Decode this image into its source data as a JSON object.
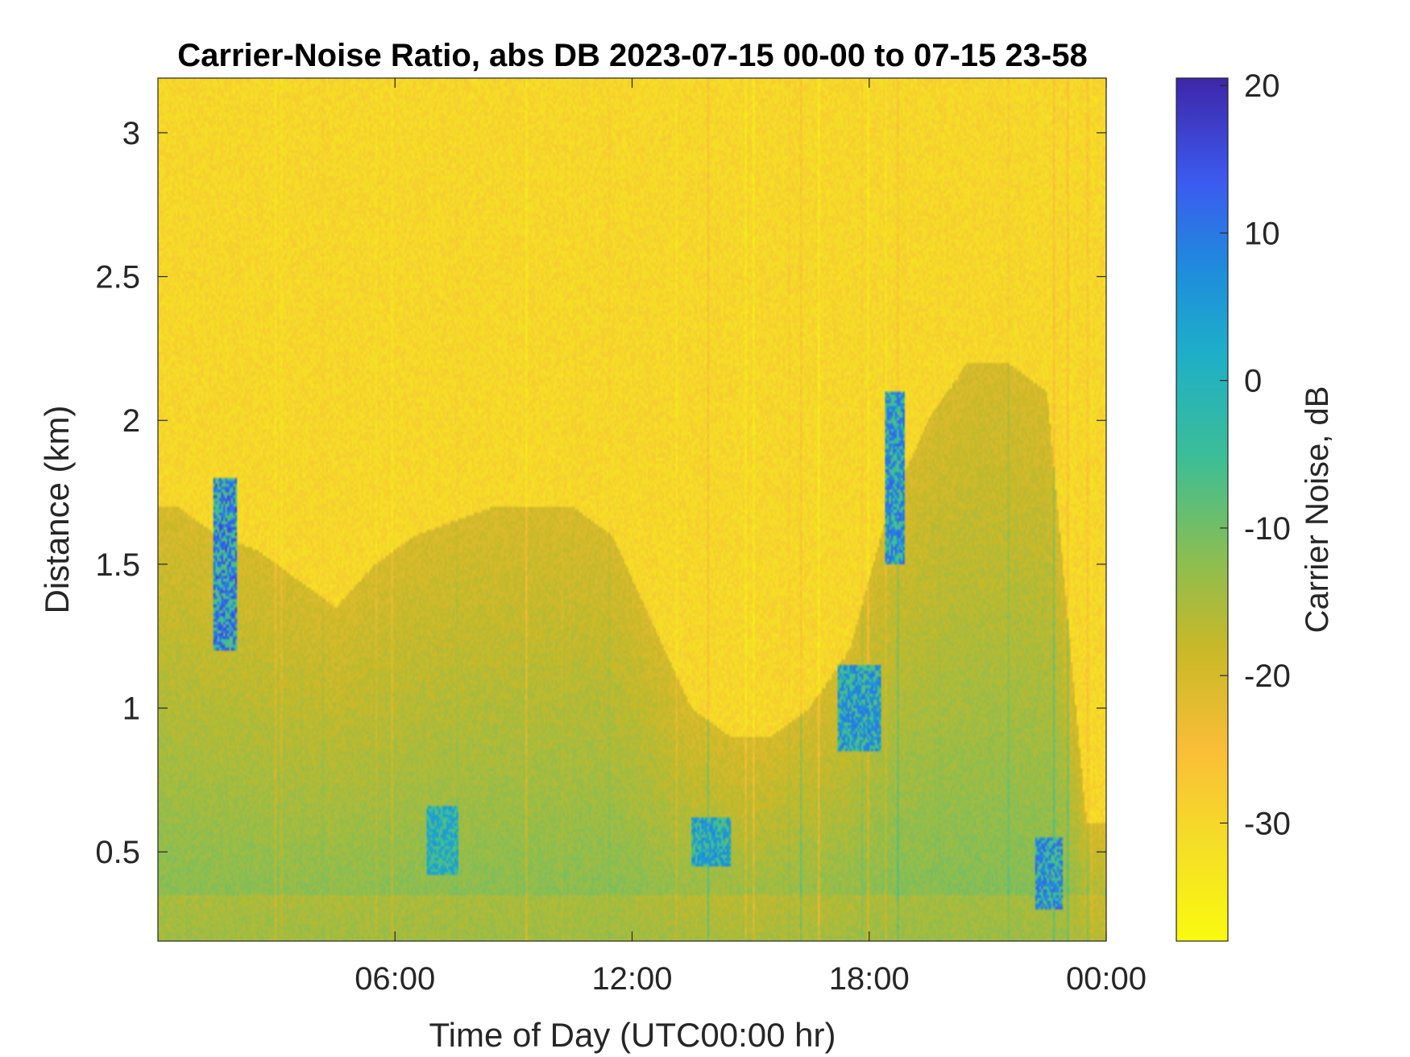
{
  "chart_data": {
    "type": "heatmap",
    "title": "Carrier-Noise Ratio, abs DB 2023-07-15 00-00 to 07-15 23-58",
    "xlabel": "Time of Day (UTC00:00 hr)",
    "ylabel": "Distance (km)",
    "x_tick_labels": [
      "06:00",
      "12:00",
      "18:00",
      "00:00"
    ],
    "x_ticks": [
      6,
      12,
      18,
      24
    ],
    "xlim": [
      0,
      24
    ],
    "y_tick_labels": [
      "0.5",
      "1",
      "1.5",
      "2",
      "2.5",
      "3"
    ],
    "y_ticks": [
      0.5,
      1,
      1.5,
      2,
      2.5,
      3
    ],
    "ylim": [
      0.19,
      3.19
    ],
    "colorbar": {
      "label": "Carrier Noise, dB",
      "tick_labels": [
        "20",
        "10",
        "0",
        "-10",
        "-20",
        "-30"
      ],
      "ticks": [
        20,
        10,
        0,
        -10,
        -20,
        -30
      ],
      "range": [
        -38,
        20.5
      ],
      "colormap": "parula"
    },
    "boundary_layer_top_km": {
      "time_h": [
        0,
        0.5,
        1.5,
        2.5,
        3.5,
        4.5,
        5.5,
        6.5,
        7.5,
        8.5,
        9.5,
        10.5,
        11.5,
        12.5,
        13.5,
        14.5,
        15.5,
        16.5,
        17.5,
        18.5,
        19.5,
        20.5,
        21.5,
        22.5,
        23.5,
        24
      ],
      "value": [
        1.7,
        1.7,
        1.6,
        1.55,
        1.45,
        1.35,
        1.5,
        1.6,
        1.65,
        1.7,
        1.7,
        1.7,
        1.6,
        1.3,
        1.0,
        0.9,
        0.9,
        1.0,
        1.2,
        1.7,
        2.0,
        2.2,
        2.2,
        2.1,
        0.6,
        0.6
      ]
    },
    "strong_return_patches": [
      {
        "time_h": [
          6.8,
          7.6
        ],
        "distance_km": [
          0.42,
          0.66
        ],
        "cnr_db": 5
      },
      {
        "time_h": [
          13.5,
          14.5
        ],
        "distance_km": [
          0.45,
          0.62
        ],
        "cnr_db": 8
      },
      {
        "time_h": [
          17.2,
          18.3
        ],
        "distance_km": [
          0.85,
          1.15
        ],
        "cnr_db": 10
      },
      {
        "time_h": [
          18.4,
          18.9
        ],
        "distance_km": [
          1.5,
          2.1
        ],
        "cnr_db": 12
      },
      {
        "time_h": [
          22.2,
          22.9
        ],
        "distance_km": [
          0.3,
          0.55
        ],
        "cnr_db": 12
      },
      {
        "time_h": [
          1.4,
          2.0
        ],
        "distance_km": [
          1.2,
          1.8
        ],
        "cnr_db": 15
      }
    ]
  }
}
